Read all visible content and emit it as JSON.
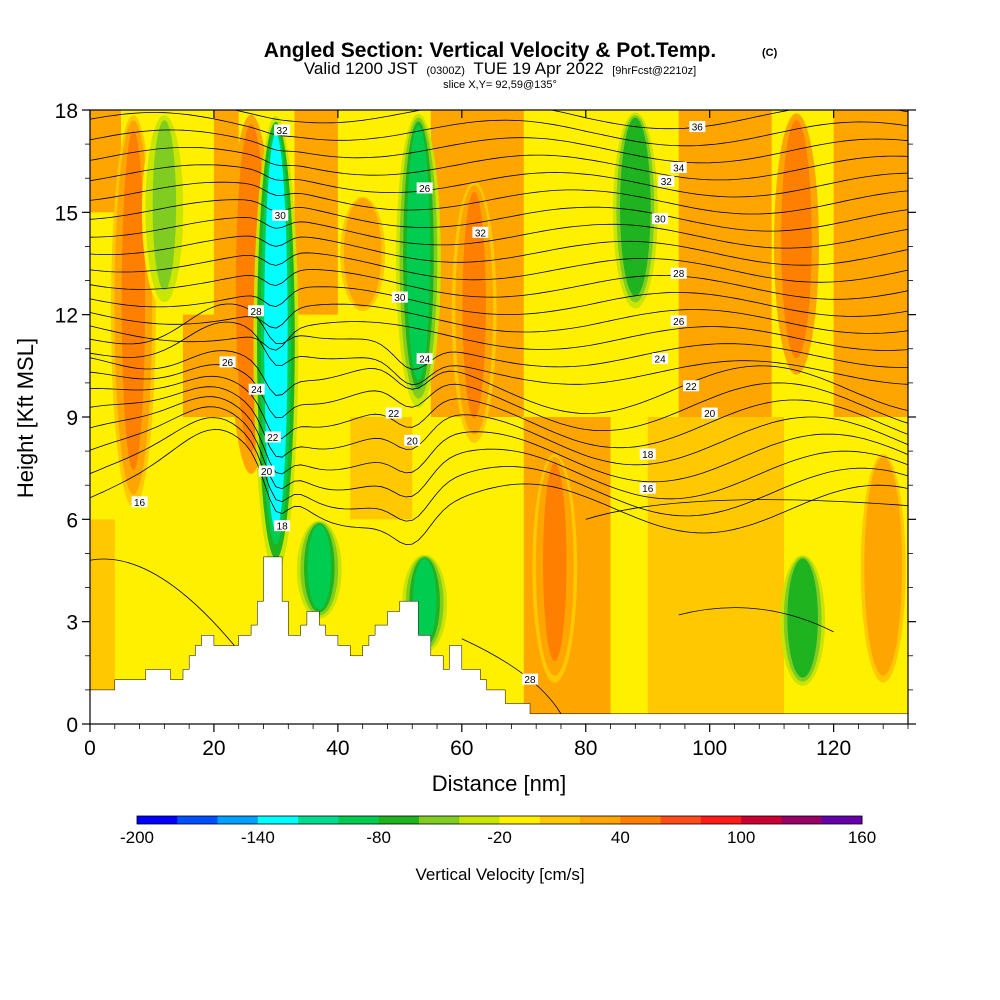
{
  "chart_data": {
    "type": "heatmap",
    "title": "Angled Section: Vertical Velocity & Pot.Temp.",
    "title_mark": "(C)",
    "subtitle": {
      "valid": "Valid 1200 JST",
      "utc": "(0300Z)",
      "date": "TUE 19 Apr 2022",
      "fcst": "[9hrFcst@2210z]"
    },
    "slice_label": "slice X,Y= 92,59@135°",
    "xlabel": "Distance [nm]",
    "ylabel": "Height [Kft MSL]",
    "xlim": [
      0,
      132
    ],
    "ylim": [
      0,
      18
    ],
    "x_ticks": [
      0,
      20,
      40,
      60,
      80,
      100,
      120
    ],
    "y_ticks": [
      0,
      3,
      6,
      9,
      12,
      15,
      18
    ],
    "colorbar": {
      "label": "Vertical Velocity [cm/s]",
      "ticks": [
        -200,
        -140,
        -80,
        -20,
        40,
        100,
        160
      ],
      "levels": [
        -200,
        -180,
        -160,
        -140,
        -120,
        -100,
        -80,
        -60,
        -40,
        -20,
        0,
        20,
        40,
        60,
        80,
        100,
        120,
        140,
        160
      ],
      "colors": [
        "#0000ff",
        "#0050ff",
        "#00a0ff",
        "#00ffff",
        "#00dd90",
        "#00cc50",
        "#1fb31f",
        "#80cc20",
        "#c8e600",
        "#fff000",
        "#ffc800",
        "#ffa500",
        "#ff8000",
        "#ff4c1a",
        "#ff1a1a",
        "#cc0033",
        "#990066",
        "#6600aa"
      ]
    },
    "contour_labels": [
      "32",
      "30",
      "28",
      "26",
      "24",
      "22",
      "20",
      "18",
      "16",
      "36",
      "34",
      "32",
      "30",
      "28",
      "26",
      "24",
      "22",
      "20",
      "18",
      "16",
      "28",
      "30",
      "32",
      "26",
      "24",
      "22",
      "20"
    ],
    "terrain": [
      [
        0,
        1.0
      ],
      [
        4,
        1.0
      ],
      [
        4,
        1.3
      ],
      [
        9,
        1.3
      ],
      [
        9,
        1.6
      ],
      [
        13,
        1.6
      ],
      [
        13,
        1.3
      ],
      [
        15,
        1.3
      ],
      [
        15,
        1.6
      ],
      [
        16,
        1.6
      ],
      [
        16,
        2.0
      ],
      [
        17,
        2.0
      ],
      [
        17,
        2.3
      ],
      [
        18,
        2.3
      ],
      [
        18,
        2.6
      ],
      [
        20,
        2.6
      ],
      [
        20,
        2.3
      ],
      [
        24,
        2.3
      ],
      [
        24,
        2.6
      ],
      [
        26,
        2.6
      ],
      [
        26,
        2.9
      ],
      [
        27,
        2.9
      ],
      [
        27,
        3.6
      ],
      [
        28,
        3.6
      ],
      [
        28,
        4.9
      ],
      [
        31,
        4.9
      ],
      [
        31,
        3.6
      ],
      [
        32,
        3.6
      ],
      [
        32,
        2.6
      ],
      [
        34,
        2.6
      ],
      [
        34,
        2.9
      ],
      [
        35,
        2.9
      ],
      [
        35,
        3.3
      ],
      [
        37,
        3.3
      ],
      [
        37,
        2.9
      ],
      [
        38,
        2.9
      ],
      [
        38,
        2.6
      ],
      [
        40,
        2.6
      ],
      [
        40,
        2.3
      ],
      [
        42,
        2.3
      ],
      [
        42,
        2.0
      ],
      [
        44,
        2.0
      ],
      [
        44,
        2.3
      ],
      [
        45,
        2.3
      ],
      [
        45,
        2.6
      ],
      [
        46,
        2.6
      ],
      [
        46,
        2.9
      ],
      [
        48,
        2.9
      ],
      [
        48,
        3.3
      ],
      [
        50,
        3.3
      ],
      [
        50,
        3.6
      ],
      [
        53,
        3.6
      ],
      [
        53,
        2.6
      ],
      [
        55,
        2.6
      ],
      [
        55,
        2.0
      ],
      [
        57,
        2.0
      ],
      [
        57,
        1.6
      ],
      [
        58,
        1.6
      ],
      [
        58,
        2.3
      ],
      [
        60,
        2.3
      ],
      [
        60,
        1.6
      ],
      [
        63,
        1.6
      ],
      [
        63,
        1.3
      ],
      [
        64,
        1.3
      ],
      [
        64,
        1.0
      ],
      [
        67,
        1.0
      ],
      [
        67,
        0.6
      ],
      [
        71,
        0.6
      ],
      [
        71,
        0.3
      ],
      [
        132,
        0.3
      ],
      [
        132,
        0
      ]
    ],
    "updrafts": [
      {
        "x": 7,
        "ztop": 18,
        "zbot": 6,
        "w": 45
      },
      {
        "x": 26,
        "ztop": 18,
        "zbot": 7,
        "w": 55
      },
      {
        "x": 44,
        "ztop": 15.5,
        "zbot": 12,
        "w": 35
      },
      {
        "x": 62,
        "ztop": 16,
        "zbot": 8,
        "w": 40
      },
      {
        "x": 75,
        "ztop": 8,
        "zbot": 1,
        "w": 40
      },
      {
        "x": 114,
        "ztop": 18,
        "zbot": 10,
        "w": 55
      },
      {
        "x": 128,
        "ztop": 8,
        "zbot": 1,
        "w": 30
      }
    ],
    "downdrafts": [
      {
        "x": 12,
        "ztop": 18,
        "zbot": 12,
        "w": -50
      },
      {
        "x": 30,
        "ztop": 18,
        "zbot": 4,
        "w": -130
      },
      {
        "x": 37,
        "ztop": 6,
        "zbot": 3,
        "w": -90
      },
      {
        "x": 53,
        "ztop": 18,
        "zbot": 9,
        "w": -90
      },
      {
        "x": 54,
        "ztop": 5,
        "zbot": 2,
        "w": -90
      },
      {
        "x": 88,
        "ztop": 18,
        "zbot": 12,
        "w": -80
      },
      {
        "x": 115,
        "ztop": 5,
        "zbot": 1,
        "w": -80
      }
    ]
  }
}
